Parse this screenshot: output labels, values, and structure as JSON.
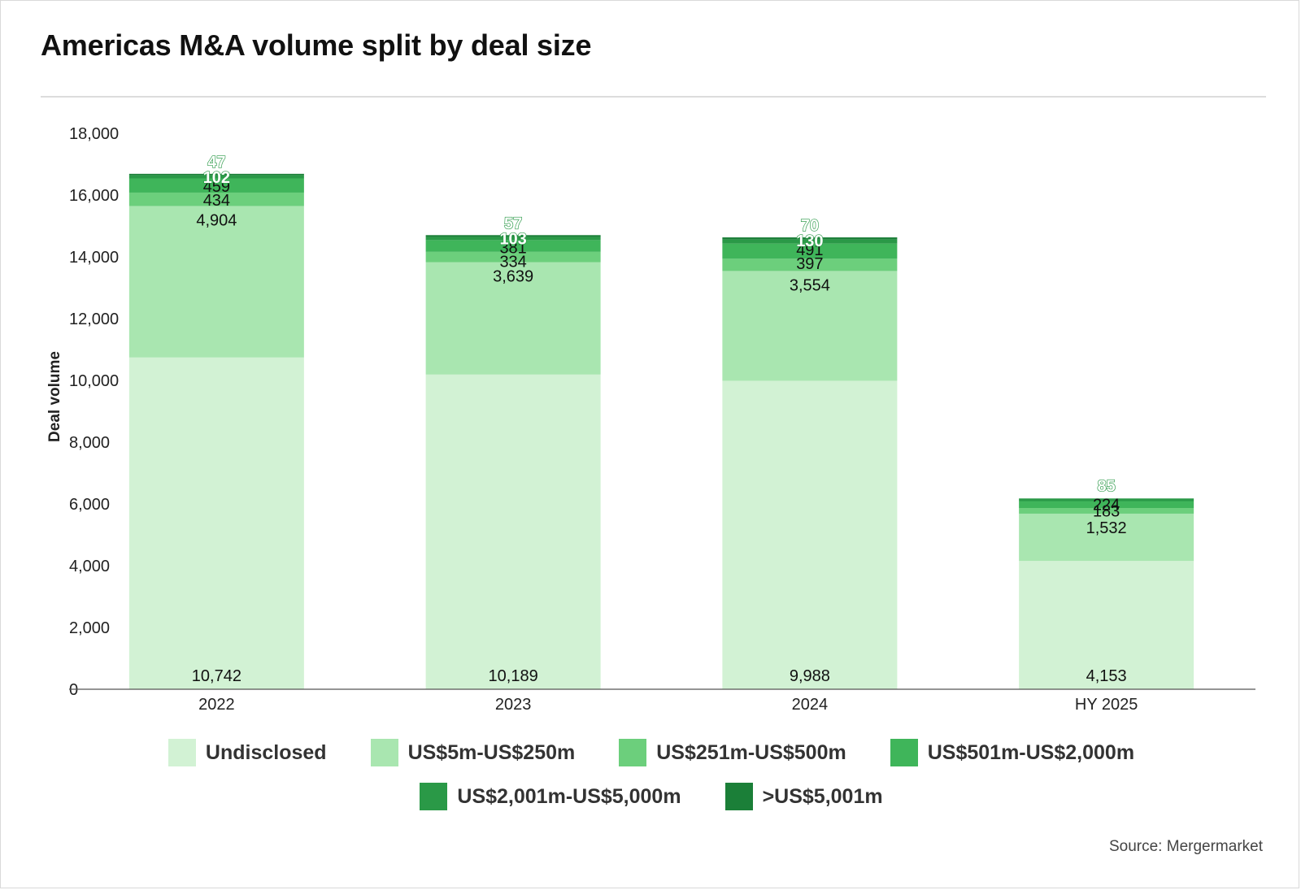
{
  "title": "Americas M&A volume split by deal size",
  "source": "Source: Mergermarket",
  "colors": {
    "Undisclosed": "#d2f2d4",
    "US$5m-US$250m": "#a9e6b0",
    "US$251m-US$500m": "#6ccf7c",
    "US$501m-US$2,000m": "#3fb55a",
    "US$2,001m-US$5,000m": "#2a9947",
    ">US$5,001m": "#1b7f38"
  },
  "chart_data": {
    "type": "bar",
    "stacked": true,
    "title": "Americas M&A volume split by deal size",
    "ylabel": "Deal volume",
    "xlabel": "",
    "ylim": [
      0,
      18000
    ],
    "yticks": [
      "0",
      "2,000",
      "4,000",
      "6,000",
      "8,000",
      "10,000",
      "12,000",
      "14,000",
      "16,000",
      "18,000"
    ],
    "categories": [
      "2022",
      "2023",
      "2024",
      "HY 2025"
    ],
    "legend_position": "bottom",
    "series": [
      {
        "name": "Undisclosed",
        "values": [
          10742,
          10189,
          9988,
          4153
        ],
        "labels": [
          "10,742",
          "10,189",
          "9,988",
          "4,153"
        ]
      },
      {
        "name": "US$5m-US$250m",
        "values": [
          4904,
          3639,
          3554,
          1532
        ],
        "labels": [
          "4,904",
          "3,639",
          "3,554",
          "1,532"
        ]
      },
      {
        "name": "US$251m-US$500m",
        "values": [
          434,
          334,
          397,
          183
        ],
        "labels": [
          "434",
          "334",
          "397",
          "183"
        ]
      },
      {
        "name": "US$501m-US$2,000m",
        "values": [
          459,
          381,
          491,
          224
        ],
        "labels": [
          "459",
          "381",
          "491",
          "224"
        ]
      },
      {
        "name": "US$2,001m-US$5,000m",
        "values": [
          102,
          103,
          130,
          85
        ],
        "labels": [
          "102",
          "103",
          "130",
          "85"
        ]
      },
      {
        "name": ">US$5,001m",
        "values": [
          47,
          57,
          70,
          0
        ],
        "labels": [
          "47",
          "57",
          "70",
          ""
        ]
      }
    ]
  }
}
